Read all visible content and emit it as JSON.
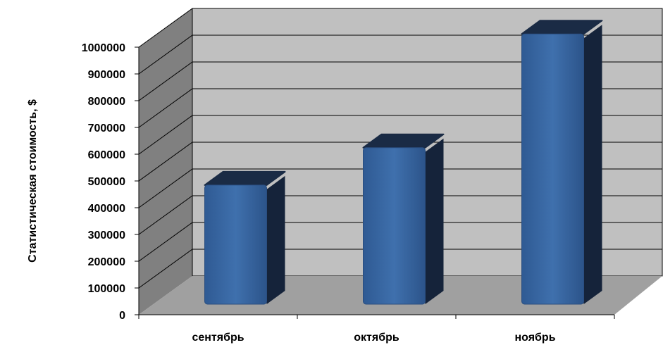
{
  "chart_data": {
    "type": "bar",
    "categories": [
      "сентябрь",
      "октябрь",
      "ноябрь"
    ],
    "values": [
      445000,
      585000,
      1010000
    ],
    "ylabel": "Статистическая стоимость, $",
    "xlabel": "",
    "ylim": [
      0,
      1000000
    ],
    "yticks": [
      "0",
      "100000",
      "200000",
      "300000",
      "400000",
      "500000",
      "600000",
      "700000",
      "800000",
      "900000",
      "1000000"
    ],
    "grid": true,
    "three_d": true,
    "colors": {
      "bar_front": "#3a6aa8",
      "bar_side": "#15233a",
      "bar_top": "#1a2b45",
      "back_wall": "#c0c0c0",
      "side_wall": "#808080",
      "floor": "#a0a0a0"
    }
  }
}
